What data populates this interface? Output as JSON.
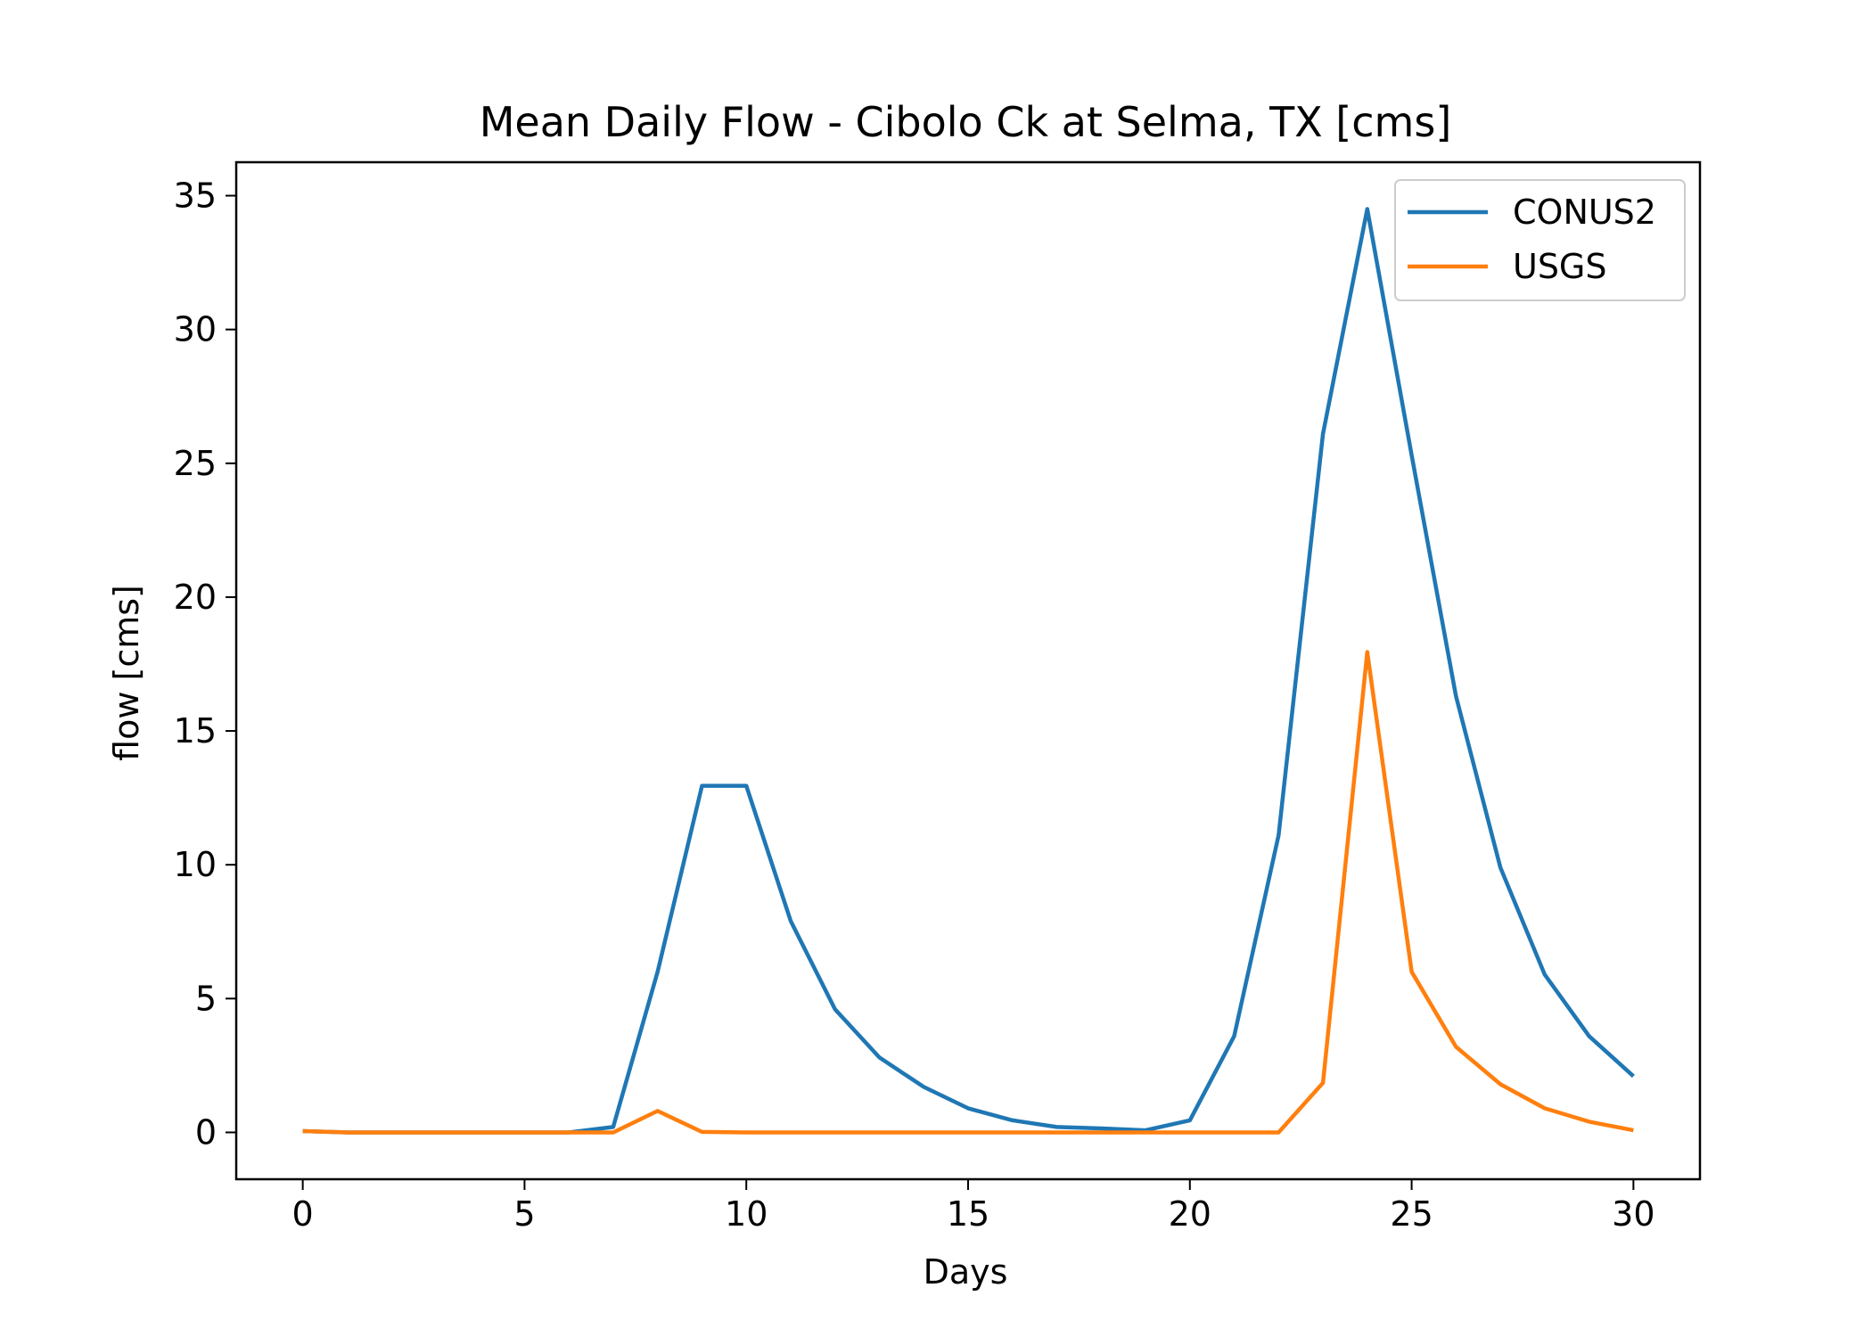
{
  "chart_data": {
    "type": "line",
    "title": "Mean Daily Flow - Cibolo Ck at Selma, TX [cms]",
    "xlabel": "Days",
    "ylabel": "flow [cms]",
    "xlim": [
      -1.5,
      31.5
    ],
    "ylim": [
      -1.75,
      36.25
    ],
    "xticks": [
      0,
      5,
      10,
      15,
      20,
      25,
      30
    ],
    "yticks": [
      0,
      5,
      10,
      15,
      20,
      25,
      30,
      35
    ],
    "x": [
      0,
      1,
      2,
      3,
      4,
      5,
      6,
      7,
      8,
      9,
      10,
      11,
      12,
      13,
      14,
      15,
      16,
      17,
      18,
      19,
      20,
      21,
      22,
      23,
      24,
      25,
      26,
      27,
      28,
      29,
      30
    ],
    "series": [
      {
        "name": "CONUS2",
        "color": "#1f77b4",
        "values": [
          0.05,
          0,
          0,
          0,
          0,
          0,
          0,
          0.2,
          6.0,
          12.95,
          12.95,
          7.9,
          4.6,
          2.8,
          1.7,
          0.9,
          0.45,
          0.2,
          0.15,
          0.08,
          0.45,
          3.6,
          11.1,
          26.1,
          34.5,
          25.3,
          16.3,
          9.9,
          5.9,
          3.6,
          2.1
        ]
      },
      {
        "name": "USGS",
        "color": "#ff7f0e",
        "values": [
          0.05,
          0,
          0,
          0,
          0,
          0,
          0,
          0,
          0.8,
          0.02,
          0,
          0,
          0,
          0,
          0,
          0,
          0,
          0,
          0,
          0,
          0,
          0,
          0,
          1.85,
          17.95,
          6.0,
          3.2,
          1.8,
          0.9,
          0.4,
          0.08
        ]
      }
    ],
    "legend": "top-right",
    "grid": false
  }
}
